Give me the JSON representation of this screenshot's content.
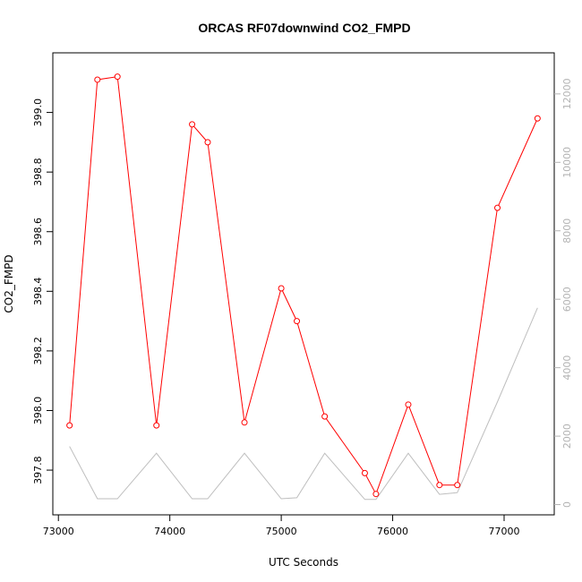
{
  "chart_data": {
    "type": "line",
    "title": "ORCAS RF07downwind CO2_FMPD",
    "xlabel": "UTC Seconds",
    "ylabel": "CO2_FMPD",
    "xlim": [
      72950,
      77450
    ],
    "ylim": [
      397.65,
      399.2
    ],
    "right_ylim": [
      -300,
      13200
    ],
    "x_ticks": [
      73000,
      74000,
      75000,
      76000,
      77000
    ],
    "y_ticks": [
      397.8,
      398.0,
      398.2,
      398.4,
      398.6,
      398.8,
      399.0
    ],
    "right_ticks": [
      0,
      2000,
      4000,
      6000,
      8000,
      10000,
      12000
    ],
    "grid": false,
    "series": [
      {
        "axis": "left",
        "color": "#ff0000",
        "marker": "open-circle",
        "x": [
          73100,
          73350,
          73530,
          73880,
          74200,
          74340,
          74670,
          75000,
          75140,
          75390,
          75750,
          75850,
          76140,
          76420,
          76580,
          76940,
          77300
        ],
        "y": [
          397.95,
          399.11,
          399.12,
          397.95,
          398.96,
          398.9,
          397.96,
          398.41,
          398.3,
          397.98,
          397.79,
          397.72,
          398.02,
          397.75,
          397.75,
          398.68,
          398.98
        ]
      },
      {
        "axis": "right",
        "color": "#bebebe",
        "x": [
          73100,
          73350,
          73530,
          73880,
          74200,
          74340,
          74670,
          75000,
          75140,
          75390,
          75750,
          75850,
          76140,
          76420,
          76580,
          76940,
          77300
        ],
        "y": [
          1700,
          170,
          170,
          1500,
          170,
          170,
          1500,
          170,
          200,
          1500,
          150,
          150,
          1500,
          300,
          350,
          3000,
          5750
        ]
      }
    ]
  }
}
